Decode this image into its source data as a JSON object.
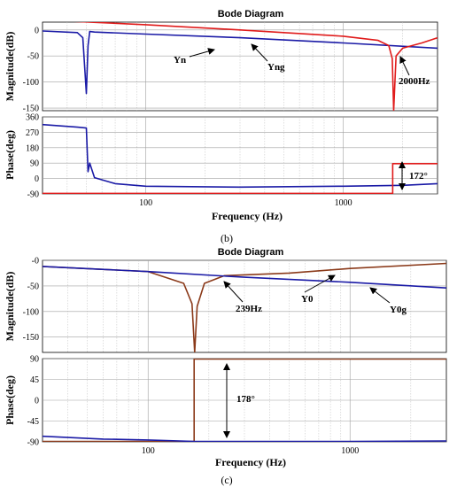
{
  "chart_data": [
    {
      "type": "line",
      "panel": "b",
      "title": "Bode Diagram",
      "caption": "(b)",
      "xlabel": "Frequency (Hz)",
      "xscale": "log",
      "xlim": [
        30,
        3000
      ],
      "xticks": [
        100,
        1000
      ],
      "xtick_labels": [
        "100",
        "1000"
      ],
      "grid": true,
      "magnitude": {
        "ylabel": "Magnitude(dB)",
        "ylim": [
          -155,
          15
        ],
        "yticks": [
          0,
          -50,
          -100,
          -150
        ],
        "ytick_labels": [
          "0",
          "-50",
          "-100",
          "-150"
        ],
        "series": [
          {
            "name": "Yn",
            "color": "#1a1aa6",
            "x": [
              30,
              45,
              48,
              50,
              51,
              52,
              55,
              100,
              300,
              1000,
              3000
            ],
            "y": [
              -2,
              -5,
              -15,
              -122,
              -30,
              -3,
              -4,
              -8,
              -15,
              -25,
              -35
            ]
          },
          {
            "name": "Yng",
            "color": "#e01b1b",
            "x": [
              30,
              100,
              300,
              1000,
              1500,
              1700,
              1770,
              1800,
              1850,
              2000,
              2500,
              3000
            ],
            "y": [
              19,
              10,
              0,
              -12,
              -20,
              -30,
              -55,
              -155,
              -50,
              -35,
              -25,
              -15
            ]
          }
        ]
      },
      "phase": {
        "ylabel": "Phase(deg)",
        "ylim": [
          -90,
          360
        ],
        "yticks": [
          360,
          270,
          180,
          90,
          0,
          -90
        ],
        "ytick_labels": [
          "360",
          "270",
          "180",
          "90",
          "0",
          "-90"
        ],
        "series": [
          {
            "name": "Yn",
            "color": "#1a1aa6",
            "x": [
              30,
              45,
              50,
              51,
              52,
              55,
              70,
              100,
              300,
              1000,
              2000,
              3000
            ],
            "y": [
              315,
              300,
              295,
              40,
              90,
              5,
              -30,
              -45,
              -50,
              -45,
              -40,
              -30
            ]
          },
          {
            "name": "Yng",
            "color": "#e01b1b",
            "x": [
              30,
              1780,
              1780,
              3000
            ],
            "y": [
              -87,
              -87,
              87,
              87
            ]
          }
        ]
      },
      "annotations": {
        "yn_label": "Yn",
        "yng_label": "Yng",
        "freq_label": "2000Hz",
        "phase_label": "172°"
      }
    },
    {
      "type": "line",
      "panel": "c",
      "title": "Bode Diagram",
      "caption": "(c)",
      "xlabel": "Frequency (Hz)",
      "xscale": "log",
      "xlim": [
        30,
        3000
      ],
      "xticks": [
        100,
        1000
      ],
      "xtick_labels": [
        "100",
        "1000"
      ],
      "grid": true,
      "magnitude": {
        "ylabel": "Magnitude(dB)",
        "ylim": [
          -180,
          0
        ],
        "yticks": [
          0,
          -50,
          -100,
          -150
        ],
        "ytick_labels": [
          "-0",
          "-50",
          "-100",
          "-150"
        ],
        "series": [
          {
            "name": "Y0",
            "color": "#8b3a1a",
            "x": [
              30,
              100,
              150,
              165,
              170,
              175,
              190,
              239,
              500,
              1000,
              3000
            ],
            "y": [
              -12,
              -22,
              -45,
              -85,
              -180,
              -90,
              -45,
              -30,
              -25,
              -16,
              -6
            ]
          },
          {
            "name": "Y0g",
            "color": "#1a1aa6",
            "x": [
              30,
              100,
              300,
              1000,
              3000
            ],
            "y": [
              -12,
              -22,
              -33,
              -43,
              -54
            ]
          }
        ]
      },
      "phase": {
        "ylabel": "Phase(deg)",
        "ylim": [
          -90,
          90
        ],
        "yticks": [
          90,
          45,
          0,
          -45,
          -90
        ],
        "ytick_labels": [
          "90",
          "45",
          "0",
          "-45",
          "-90"
        ],
        "series": [
          {
            "name": "Y0",
            "color": "#8b3a1a",
            "x": [
              30,
              169,
              169,
              3000
            ],
            "y": [
              -89,
              -89,
              89,
              89
            ]
          },
          {
            "name": "Y0g",
            "color": "#1a1aa6",
            "x": [
              30,
              60,
              100,
              169,
              300,
              1000,
              3000
            ],
            "y": [
              -78,
              -84,
              -86,
              -89,
              -89,
              -89,
              -88
            ]
          }
        ]
      },
      "annotations": {
        "y0_label": "Y0",
        "y0g_label": "Y0g",
        "freq_label": "239Hz",
        "phase_label": "178°"
      }
    }
  ]
}
